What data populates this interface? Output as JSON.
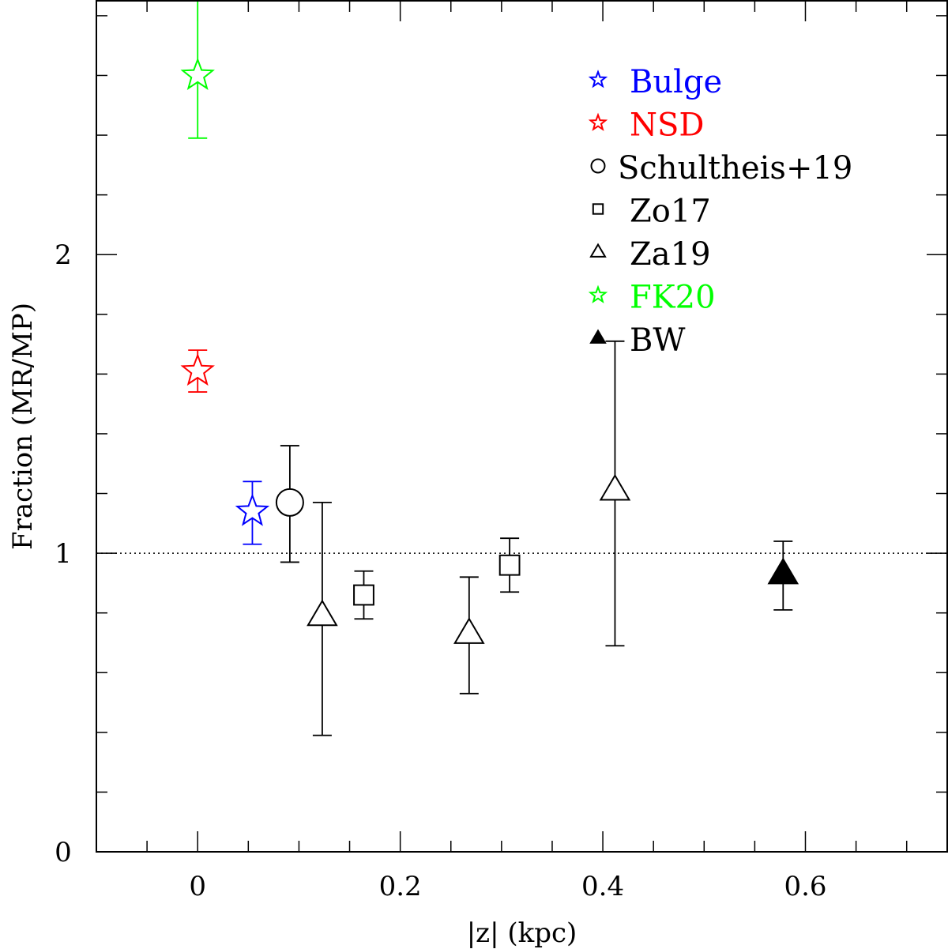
{
  "chart_data": {
    "type": "scatter",
    "title": "",
    "xlabel": "|z| (kpc)",
    "ylabel": "Fraction (MR/MP)",
    "xlim": [
      -0.1,
      0.74
    ],
    "ylim": [
      0,
      2.85
    ],
    "x_ticks": [
      {
        "value": 0,
        "label": "0"
      },
      {
        "value": 0.2,
        "label": "0.2"
      },
      {
        "value": 0.4,
        "label": "0.4"
      },
      {
        "value": 0.6,
        "label": "0.6"
      }
    ],
    "y_ticks": [
      {
        "value": 0,
        "label": "0"
      },
      {
        "value": 1,
        "label": "1"
      },
      {
        "value": 2,
        "label": "2"
      }
    ],
    "reference_line": {
      "y": 1,
      "style": "dotted"
    },
    "grid": false,
    "legend_position": "top-right",
    "series": [
      {
        "name": "Bulge",
        "marker": "star-open",
        "color": "#0000ff",
        "points": [
          {
            "x": 0.054,
            "y": 1.14,
            "err_low": 1.03,
            "err_high": 1.24
          }
        ]
      },
      {
        "name": "NSD",
        "marker": "star-open",
        "color": "#ff0000",
        "points": [
          {
            "x": 0.0,
            "y": 1.61,
            "err_low": 1.54,
            "err_high": 1.68
          }
        ]
      },
      {
        "name": "Schultheis+19",
        "marker": "circle-open",
        "color": "#000000",
        "points": [
          {
            "x": 0.091,
            "y": 1.17,
            "err_low": 0.97,
            "err_high": 1.36
          }
        ]
      },
      {
        "name": "Zo17",
        "marker": "square-open",
        "color": "#000000",
        "points": [
          {
            "x": 0.164,
            "y": 0.86,
            "err_low": 0.78,
            "err_high": 0.94
          },
          {
            "x": 0.308,
            "y": 0.96,
            "err_low": 0.87,
            "err_high": 1.05
          }
        ]
      },
      {
        "name": "Za19",
        "marker": "triangle-open",
        "color": "#000000",
        "points": [
          {
            "x": 0.123,
            "y": 0.79,
            "err_low": 0.39,
            "err_high": 1.17
          },
          {
            "x": 0.268,
            "y": 0.73,
            "err_low": 0.53,
            "err_high": 0.92
          },
          {
            "x": 0.412,
            "y": 1.21,
            "err_low": 0.69,
            "err_high": 1.71
          }
        ]
      },
      {
        "name": "FK20",
        "marker": "star-open",
        "color": "#00ff00",
        "points": [
          {
            "x": 0.0,
            "y": 2.6,
            "err_low": 2.39,
            "err_high": 2.85
          }
        ]
      },
      {
        "name": "BW",
        "marker": "triangle-filled",
        "color": "#000000",
        "points": [
          {
            "x": 0.578,
            "y": 0.93,
            "err_low": 0.81,
            "err_high": 1.04
          }
        ]
      }
    ]
  }
}
